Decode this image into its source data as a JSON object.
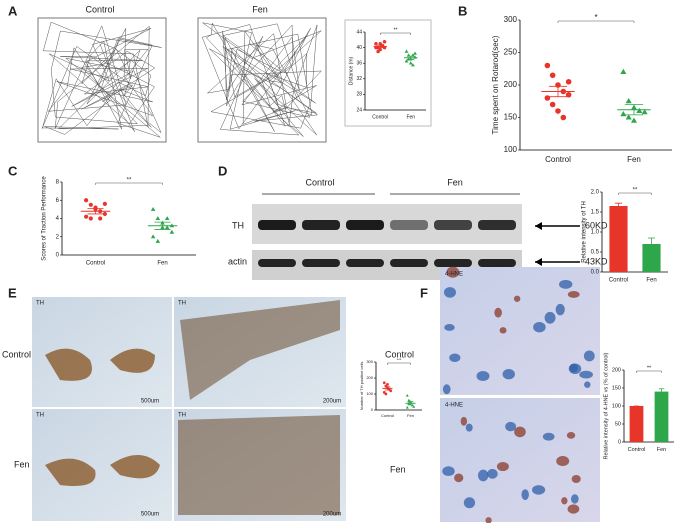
{
  "labels": {
    "letters": [
      "A",
      "B",
      "C",
      "D",
      "E",
      "F"
    ],
    "a_groups": [
      "Control",
      "Fen"
    ],
    "d_groups": [
      "Control",
      "Fen"
    ],
    "d_rows": [
      "TH",
      "actin"
    ],
    "d_sizes": [
      "60KD",
      "43KD"
    ],
    "e_groups": [
      "Control",
      "Fen"
    ],
    "e_stain": [
      "TH",
      "TH",
      "TH",
      "TH"
    ],
    "e_scales": [
      "500um",
      "200um",
      "500um",
      "200um"
    ],
    "f_groups": [
      "Control",
      "Fen"
    ],
    "f_stain": [
      "4-HNE",
      "4-HNE"
    ]
  },
  "chart_data": [
    {
      "type": "strip",
      "y_label": "Distance (m)",
      "categories": [
        "Control",
        "Fen"
      ],
      "colors": [
        "#e8352a",
        "#2ea64a"
      ],
      "points": [
        [
          41,
          40,
          39.5,
          40.5,
          41.5,
          40,
          39,
          41,
          40.5,
          40
        ],
        [
          39,
          37,
          36,
          38,
          37.5,
          36.5,
          38,
          37,
          35.5,
          38.5
        ]
      ],
      "values": [
        40.3,
        37.4
      ],
      "errors": [
        0.3,
        0.4
      ],
      "annotation": "**",
      "ylim": [
        24,
        44
      ],
      "yticks": [
        24,
        28,
        32,
        36,
        40,
        44
      ]
    },
    {
      "type": "strip",
      "y_label": "Time spent on Rotarod(sec)",
      "categories": [
        "Control",
        "Fen"
      ],
      "colors": [
        "#e8352a",
        "#2ea64a"
      ],
      "points": [
        [
          230,
          215,
          200,
          190,
          185,
          180,
          170,
          160,
          150,
          205
        ],
        [
          220,
          175,
          165,
          160,
          158,
          155,
          150,
          145
        ]
      ],
      "values": [
        190,
        162
      ],
      "errors": [
        8,
        8
      ],
      "annotation": "*",
      "ylim": [
        100,
        300
      ],
      "yticks": [
        100,
        150,
        200,
        250,
        300
      ]
    },
    {
      "type": "strip",
      "y_label": "Scores of Traction Performance",
      "categories": [
        "Control",
        "Fen"
      ],
      "colors": [
        "#e8352a",
        "#2ea64a"
      ],
      "points": [
        [
          6,
          5.5,
          5,
          4.8,
          4.5,
          4.2,
          4,
          5.2,
          4,
          5.6
        ],
        [
          5,
          4,
          3.5,
          3,
          2.5,
          2,
          1.5,
          3,
          4,
          3.2
        ]
      ],
      "values": [
        4.8,
        3.2
      ],
      "errors": [
        0.3,
        0.4
      ],
      "annotation": "**",
      "ylim": [
        0,
        8
      ],
      "yticks": [
        0,
        2,
        4,
        6,
        8
      ]
    },
    {
      "type": "bar",
      "y_label": "Relative intensity of TH",
      "categories": [
        "Control",
        "Fen"
      ],
      "colors": [
        "#e8352a",
        "#2ea64a"
      ],
      "values": [
        1.65,
        0.7
      ],
      "errors": [
        0.07,
        0.15
      ],
      "annotation": "**",
      "ylim": [
        0,
        2
      ],
      "yticks": [
        {
          "value": 0,
          "label": "0.0"
        },
        {
          "value": 0.5,
          "label": "0.5"
        },
        {
          "value": 1,
          "label": "1.0"
        },
        {
          "value": 1.5,
          "label": "1.5"
        },
        {
          "value": 2,
          "label": "2.0"
        }
      ]
    },
    {
      "type": "strip",
      "y_label": "Number of TH positive cells",
      "categories": [
        "Control",
        "Fen"
      ],
      "colors": [
        "#e8352a",
        "#2ea64a"
      ],
      "points": [
        [
          170,
          150,
          140,
          130,
          120,
          110,
          100,
          160
        ],
        [
          90,
          60,
          45,
          30,
          20,
          15,
          40,
          50
        ]
      ],
      "values": [
        135,
        42
      ],
      "errors": [
        10,
        10
      ],
      "annotation": "***",
      "ylim": [
        0,
        300
      ],
      "yticks": [
        0,
        100,
        200,
        300
      ]
    },
    {
      "type": "bar",
      "y_label": "Relative intensity of 4-HNE vs (% of control)",
      "categories": [
        "Control",
        "Fen"
      ],
      "colors": [
        "#e8352a",
        "#2ea64a"
      ],
      "values": [
        100,
        140
      ],
      "errors": [
        0,
        8
      ],
      "annotation": "**",
      "ylim": [
        0,
        200
      ],
      "yticks": [
        0,
        50,
        100,
        150,
        200
      ]
    }
  ]
}
